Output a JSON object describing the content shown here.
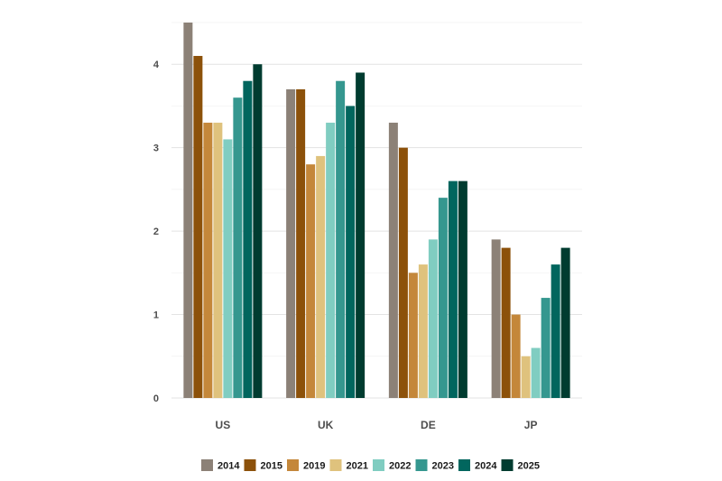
{
  "chart_data": {
    "type": "bar",
    "title": "",
    "xlabel": "",
    "ylabel": "",
    "ylim": [
      0,
      4.5
    ],
    "yticks": [
      0,
      1,
      2,
      3,
      4
    ],
    "grid": "horizontal",
    "legend_position": "bottom",
    "categories": [
      "US",
      "UK",
      "DE",
      "JP"
    ],
    "series": [
      {
        "name": "2014",
        "color": "#8c8177",
        "values": [
          4.5,
          3.7,
          3.3,
          1.9
        ]
      },
      {
        "name": "2015",
        "color": "#8c510a",
        "values": [
          4.1,
          3.7,
          3.0,
          1.8
        ]
      },
      {
        "name": "2019",
        "color": "#c4873a",
        "values": [
          3.3,
          2.8,
          1.5,
          1.0
        ]
      },
      {
        "name": "2021",
        "color": "#dfc27d",
        "values": [
          3.3,
          2.9,
          1.6,
          0.5
        ]
      },
      {
        "name": "2022",
        "color": "#80cdc1",
        "values": [
          3.1,
          3.3,
          1.9,
          0.6
        ]
      },
      {
        "name": "2023",
        "color": "#35978f",
        "values": [
          3.6,
          3.8,
          2.4,
          1.2
        ]
      },
      {
        "name": "2024",
        "color": "#01665e",
        "values": [
          3.8,
          3.5,
          2.6,
          1.6
        ]
      },
      {
        "name": "2025",
        "color": "#003c30",
        "values": [
          4.0,
          3.9,
          2.6,
          1.8
        ]
      }
    ]
  }
}
